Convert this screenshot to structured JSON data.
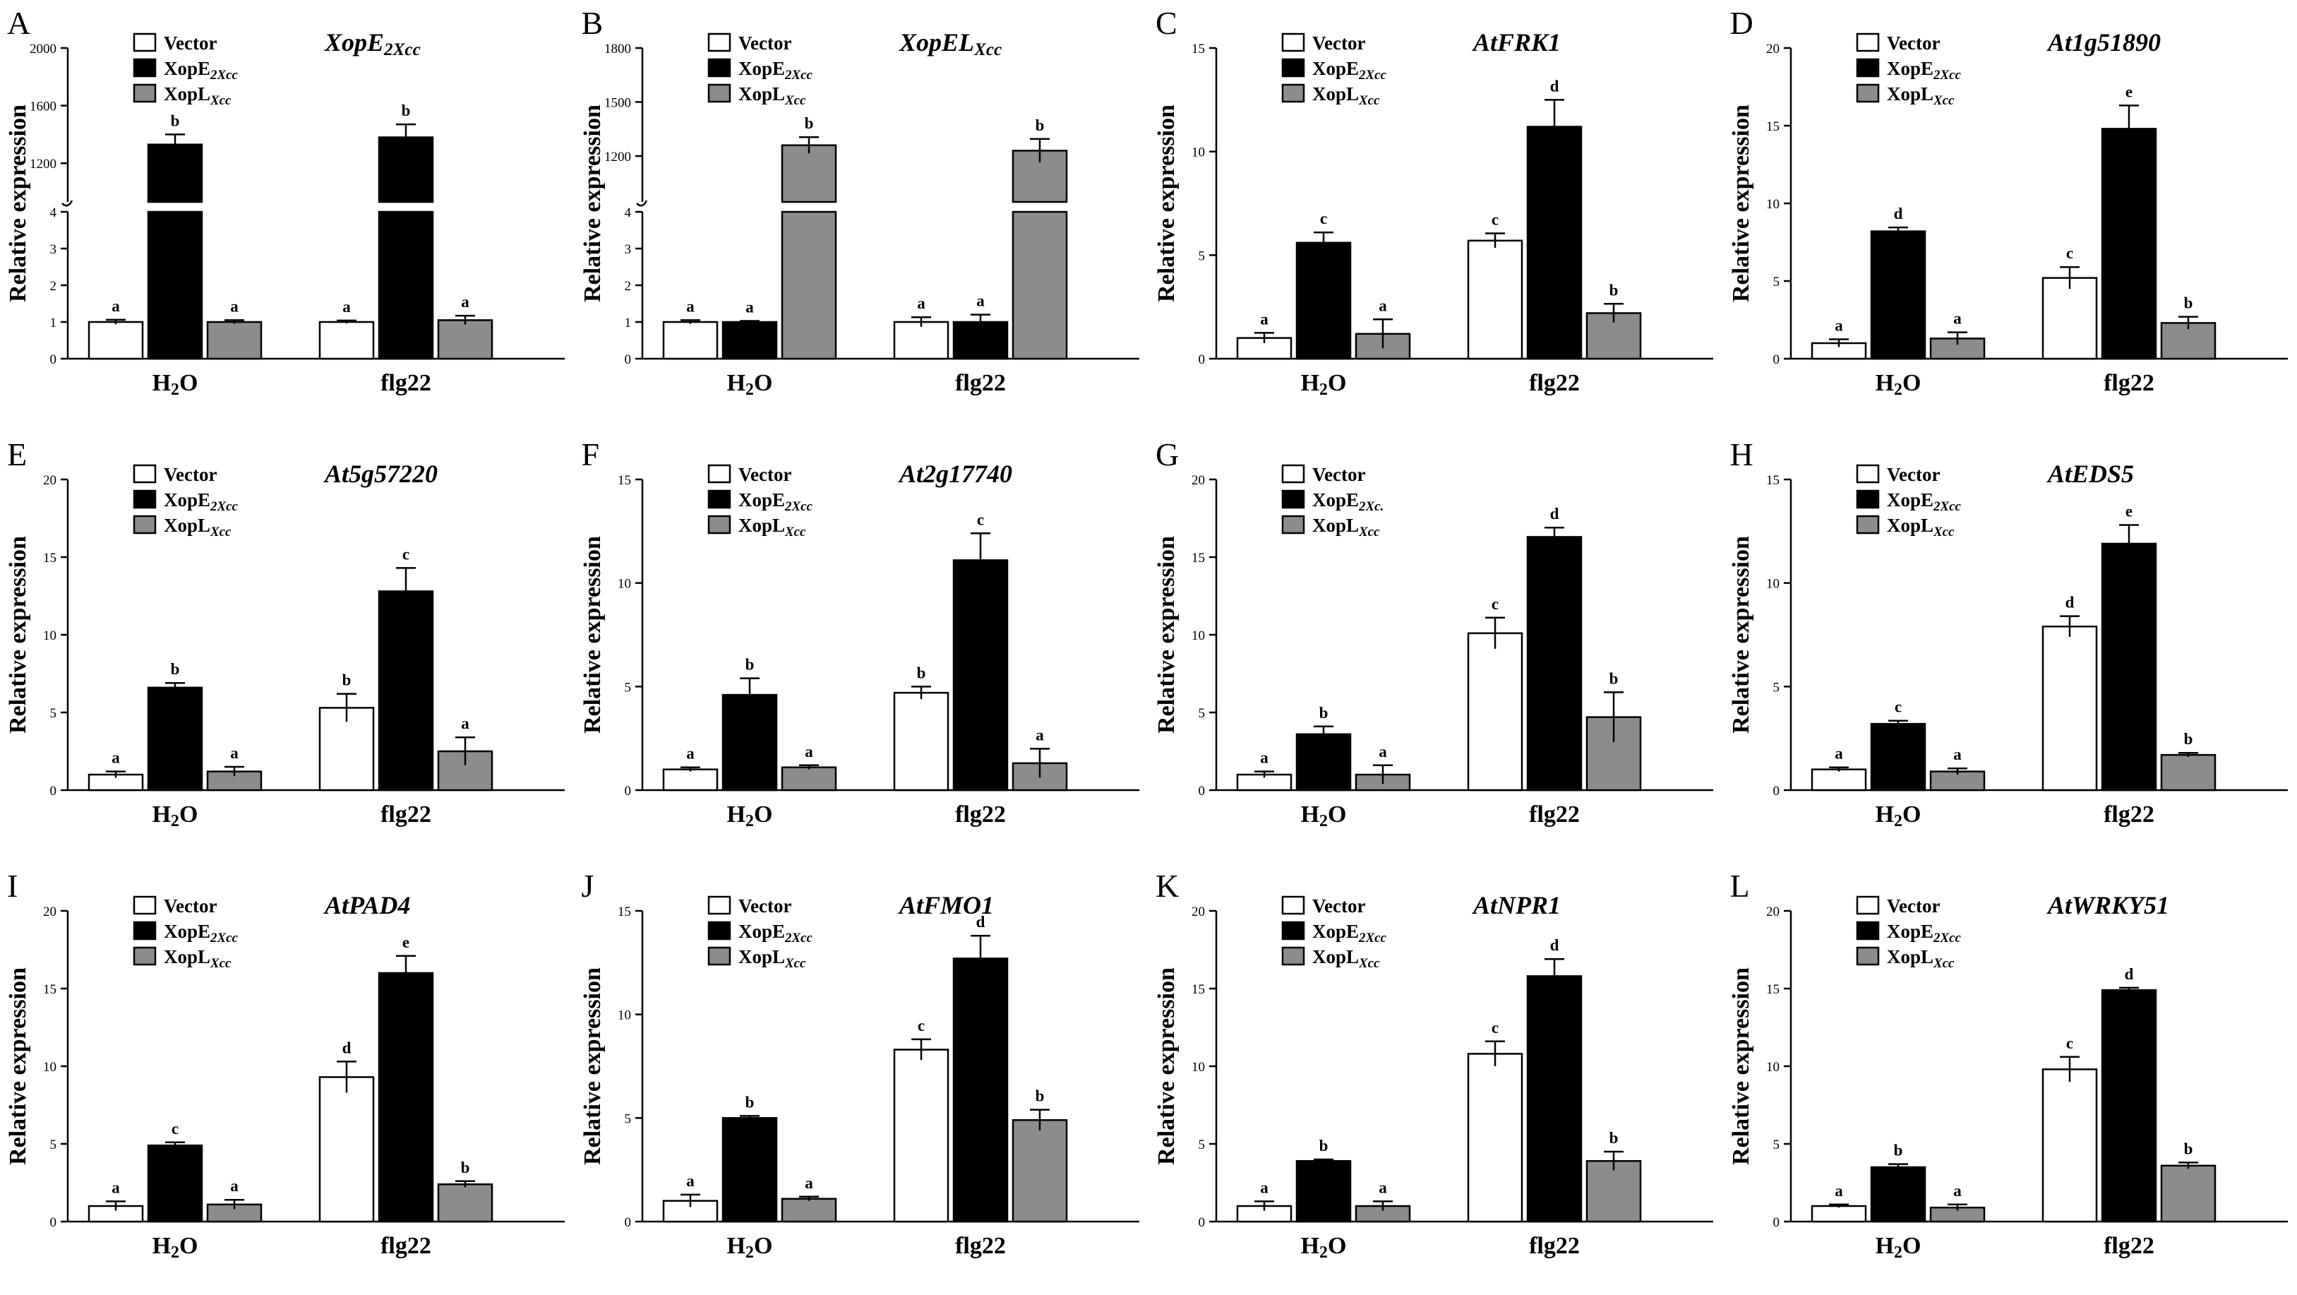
{
  "figure": {
    "colors": {
      "Vector": "#ffffff",
      "XopE2Xcc": "#000000",
      "XopLXcc": "#8c8c8c",
      "axis": "#000000"
    },
    "legend_labels": [
      {
        "series": "Vector",
        "main": "Vector",
        "sub": ""
      },
      {
        "series": "XopE2Xcc",
        "main": "XopE",
        "sub": "2Xcc"
      },
      {
        "series": "XopLXcc",
        "main": "XopL",
        "sub": "Xcc"
      }
    ]
  },
  "chart_data": [
    {
      "panel": "A",
      "type": "bar",
      "title": "XopE",
      "title_sub": "2Xcc",
      "ylabel": "Relative expression",
      "categories": [
        "H2O",
        "flg22"
      ],
      "axis_break": {
        "lower_ylim": [
          0,
          4
        ],
        "lower_ticks": [
          0,
          1,
          2,
          3,
          4
        ],
        "upper_ylim": [
          1000,
          2000
        ],
        "upper_ticks": [
          1200,
          1600,
          2000
        ]
      },
      "series": [
        {
          "name": "Vector",
          "values": [
            1.0,
            1.0
          ],
          "errors": [
            0.06,
            0.04
          ],
          "letters": [
            "a",
            "a"
          ]
        },
        {
          "name": "XopE2Xcc",
          "values": [
            1330,
            1380
          ],
          "errors": [
            70,
            90
          ],
          "letters": [
            "b",
            "b"
          ]
        },
        {
          "name": "XopLXcc",
          "values": [
            1.0,
            1.05
          ],
          "errors": [
            0.05,
            0.12
          ],
          "letters": [
            "a",
            "a"
          ]
        }
      ]
    },
    {
      "panel": "B",
      "type": "bar",
      "title": "XopEL",
      "title_sub": "Xcc",
      "ylabel": "Relative expression",
      "categories": [
        "H2O",
        "flg22"
      ],
      "axis_break": {
        "lower_ylim": [
          0,
          4
        ],
        "lower_ticks": [
          0,
          1,
          2,
          3,
          4
        ],
        "upper_ylim": [
          1000,
          1800
        ],
        "upper_ticks": [
          1200,
          1500,
          1800
        ]
      },
      "series": [
        {
          "name": "Vector",
          "values": [
            1.0,
            1.0
          ],
          "errors": [
            0.05,
            0.13
          ],
          "letters": [
            "a",
            "a"
          ]
        },
        {
          "name": "XopE2Xcc",
          "values": [
            1.0,
            1.0
          ],
          "errors": [
            0.03,
            0.2
          ],
          "letters": [
            "a",
            "a"
          ]
        },
        {
          "name": "XopLXcc",
          "values": [
            1260,
            1230
          ],
          "errors": [
            45,
            65
          ],
          "letters": [
            "b",
            "b"
          ]
        }
      ]
    },
    {
      "panel": "C",
      "type": "bar",
      "title": "AtFRK1",
      "ylabel": "Relative expression",
      "categories": [
        "H2O",
        "flg22"
      ],
      "ylim": [
        0,
        15
      ],
      "yticks": [
        0,
        5,
        10,
        15
      ],
      "series": [
        {
          "name": "Vector",
          "values": [
            1.0,
            5.7
          ],
          "errors": [
            0.25,
            0.35
          ],
          "letters": [
            "a",
            "c"
          ]
        },
        {
          "name": "XopE2Xcc",
          "values": [
            5.6,
            11.2
          ],
          "errors": [
            0.5,
            1.3
          ],
          "letters": [
            "c",
            "d"
          ]
        },
        {
          "name": "XopLXcc",
          "values": [
            1.2,
            2.2
          ],
          "errors": [
            0.7,
            0.45
          ],
          "letters": [
            "a",
            "b"
          ]
        }
      ]
    },
    {
      "panel": "D",
      "type": "bar",
      "title": "At1g51890",
      "ylabel": "Relative expression",
      "categories": [
        "H2O",
        "flg22"
      ],
      "ylim": [
        0,
        20
      ],
      "yticks": [
        0,
        5,
        10,
        15,
        20
      ],
      "series": [
        {
          "name": "Vector",
          "values": [
            1.0,
            5.2
          ],
          "errors": [
            0.25,
            0.7
          ],
          "letters": [
            "a",
            "c"
          ]
        },
        {
          "name": "XopE2Xcc",
          "values": [
            8.2,
            14.8
          ],
          "errors": [
            0.25,
            1.5
          ],
          "letters": [
            "d",
            "e"
          ]
        },
        {
          "name": "XopLXcc",
          "values": [
            1.3,
            2.3
          ],
          "errors": [
            0.4,
            0.4
          ],
          "letters": [
            "a",
            "b"
          ]
        }
      ]
    },
    {
      "panel": "E",
      "type": "bar",
      "title": "At5g57220",
      "ylabel": "Relative expression",
      "categories": [
        "H2O",
        "flg22"
      ],
      "ylim": [
        0,
        20
      ],
      "yticks": [
        0,
        5,
        10,
        15,
        20
      ],
      "series": [
        {
          "name": "Vector",
          "values": [
            1.0,
            5.3
          ],
          "errors": [
            0.2,
            0.9
          ],
          "letters": [
            "a",
            "b"
          ]
        },
        {
          "name": "XopE2Xcc",
          "values": [
            6.6,
            12.8
          ],
          "errors": [
            0.3,
            1.5
          ],
          "letters": [
            "b",
            "c"
          ]
        },
        {
          "name": "XopLXcc",
          "values": [
            1.2,
            2.5
          ],
          "errors": [
            0.3,
            0.9
          ],
          "letters": [
            "a",
            "a"
          ]
        }
      ]
    },
    {
      "panel": "F",
      "type": "bar",
      "title": "At2g17740",
      "ylabel": "Relative expression",
      "categories": [
        "H2O",
        "flg22"
      ],
      "ylim": [
        0,
        15
      ],
      "yticks": [
        0,
        5,
        10,
        15
      ],
      "series": [
        {
          "name": "Vector",
          "values": [
            1.0,
            4.7
          ],
          "errors": [
            0.1,
            0.3
          ],
          "letters": [
            "a",
            "b"
          ]
        },
        {
          "name": "XopE2Xcc",
          "values": [
            4.6,
            11.1
          ],
          "errors": [
            0.8,
            1.3
          ],
          "letters": [
            "b",
            "c"
          ]
        },
        {
          "name": "XopLXcc",
          "values": [
            1.1,
            1.3
          ],
          "errors": [
            0.1,
            0.7
          ],
          "letters": [
            "a",
            "a"
          ]
        }
      ]
    },
    {
      "panel": "G",
      "type": "bar",
      "title": "",
      "ylabel": "Relative expression",
      "legend_override": {
        "XopE2Xcc": {
          "main": "XopE",
          "sub": "2Xc."
        }
      },
      "categories": [
        "H2O",
        "flg22"
      ],
      "ylim": [
        0,
        20
      ],
      "yticks": [
        0,
        5,
        10,
        15,
        20
      ],
      "series": [
        {
          "name": "Vector",
          "values": [
            1.0,
            10.1
          ],
          "errors": [
            0.2,
            1.0
          ],
          "letters": [
            "a",
            "c"
          ]
        },
        {
          "name": "XopE2Xcc",
          "values": [
            3.6,
            16.3
          ],
          "errors": [
            0.5,
            0.6
          ],
          "letters": [
            "b",
            "d"
          ]
        },
        {
          "name": "XopLXcc",
          "values": [
            1.0,
            4.7
          ],
          "errors": [
            0.6,
            1.6
          ],
          "letters": [
            "a",
            "b"
          ]
        }
      ]
    },
    {
      "panel": "H",
      "type": "bar",
      "title": "AtEDS5",
      "ylabel": "Relative expression",
      "categories": [
        "H2O",
        "flg22"
      ],
      "ylim": [
        0,
        15
      ],
      "yticks": [
        0,
        5,
        10,
        15
      ],
      "series": [
        {
          "name": "Vector",
          "values": [
            1.0,
            7.9
          ],
          "errors": [
            0.1,
            0.5
          ],
          "letters": [
            "a",
            "d"
          ]
        },
        {
          "name": "XopE2Xcc",
          "values": [
            3.2,
            11.9
          ],
          "errors": [
            0.15,
            0.9
          ],
          "letters": [
            "c",
            "e"
          ]
        },
        {
          "name": "XopLXcc",
          "values": [
            0.9,
            1.7
          ],
          "errors": [
            0.15,
            0.1
          ],
          "letters": [
            "a",
            "b"
          ]
        }
      ]
    },
    {
      "panel": "I",
      "type": "bar",
      "title": "AtPAD4",
      "ylabel": "Relative expression",
      "categories": [
        "H2O",
        "flg22"
      ],
      "ylim": [
        0,
        20
      ],
      "yticks": [
        0,
        5,
        10,
        15,
        20
      ],
      "series": [
        {
          "name": "Vector",
          "values": [
            1.0,
            9.3
          ],
          "errors": [
            0.3,
            1.0
          ],
          "letters": [
            "a",
            "d"
          ]
        },
        {
          "name": "XopE2Xcc",
          "values": [
            4.9,
            16.0
          ],
          "errors": [
            0.2,
            1.1
          ],
          "letters": [
            "c",
            "e"
          ]
        },
        {
          "name": "XopLXcc",
          "values": [
            1.1,
            2.4
          ],
          "errors": [
            0.3,
            0.2
          ],
          "letters": [
            "a",
            "b"
          ]
        }
      ]
    },
    {
      "panel": "J",
      "type": "bar",
      "title": "AtFMO1",
      "ylabel": "Relative expression",
      "categories": [
        "H2O",
        "flg22"
      ],
      "ylim": [
        0,
        15
      ],
      "yticks": [
        0,
        5,
        10,
        15
      ],
      "series": [
        {
          "name": "Vector",
          "values": [
            1.0,
            8.3
          ],
          "errors": [
            0.3,
            0.5
          ],
          "letters": [
            "a",
            "c"
          ]
        },
        {
          "name": "XopE2Xcc",
          "values": [
            5.0,
            12.7
          ],
          "errors": [
            0.1,
            1.1
          ],
          "letters": [
            "b",
            "d"
          ]
        },
        {
          "name": "XopLXcc",
          "values": [
            1.1,
            4.9
          ],
          "errors": [
            0.1,
            0.5
          ],
          "letters": [
            "a",
            "b"
          ]
        }
      ]
    },
    {
      "panel": "K",
      "type": "bar",
      "title": "AtNPR1",
      "ylabel": "Relative expression",
      "categories": [
        "H2O",
        "flg22"
      ],
      "ylim": [
        0,
        20
      ],
      "yticks": [
        0,
        5,
        10,
        15,
        20
      ],
      "series": [
        {
          "name": "Vector",
          "values": [
            1.0,
            10.8
          ],
          "errors": [
            0.3,
            0.8
          ],
          "letters": [
            "a",
            "c"
          ]
        },
        {
          "name": "XopE2Xcc",
          "values": [
            3.9,
            15.8
          ],
          "errors": [
            0.1,
            1.1
          ],
          "letters": [
            "b",
            "d"
          ]
        },
        {
          "name": "XopLXcc",
          "values": [
            1.0,
            3.9
          ],
          "errors": [
            0.3,
            0.6
          ],
          "letters": [
            "a",
            "b"
          ]
        }
      ]
    },
    {
      "panel": "L",
      "type": "bar",
      "title": "AtWRKY51",
      "ylabel": "Relative expression",
      "categories": [
        "H2O",
        "flg22"
      ],
      "ylim": [
        0,
        20
      ],
      "yticks": [
        0,
        5,
        10,
        15,
        20
      ],
      "series": [
        {
          "name": "Vector",
          "values": [
            1.0,
            9.8
          ],
          "errors": [
            0.1,
            0.8
          ],
          "letters": [
            "a",
            "c"
          ]
        },
        {
          "name": "XopE2Xcc",
          "values": [
            3.5,
            14.9
          ],
          "errors": [
            0.2,
            0.15
          ],
          "letters": [
            "b",
            "d"
          ]
        },
        {
          "name": "XopLXcc",
          "values": [
            0.9,
            3.6
          ],
          "errors": [
            0.2,
            0.2
          ],
          "letters": [
            "a",
            "b"
          ]
        }
      ]
    }
  ]
}
